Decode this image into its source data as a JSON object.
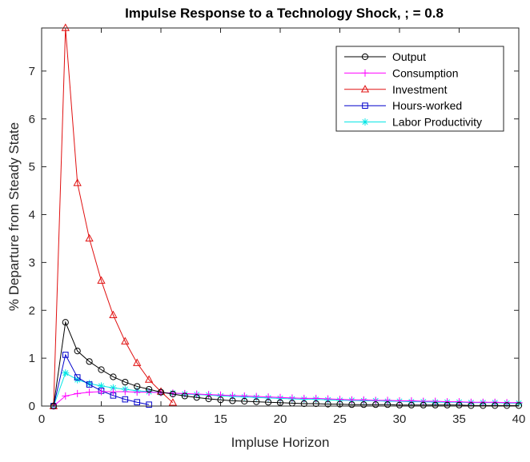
{
  "chart_data": {
    "type": "line",
    "title": "Impulse Response to a Technology Shock, ; = 0.8",
    "xlabel": "Impluse Horizon",
    "ylabel": "% Departure from Steady State",
    "xlim": [
      0,
      40
    ],
    "ylim": [
      0,
      7.9
    ],
    "xticks": [
      0,
      5,
      10,
      15,
      20,
      25,
      30,
      35,
      40
    ],
    "yticks": [
      0,
      1,
      2,
      3,
      4,
      5,
      6,
      7
    ],
    "grid": false,
    "legend_position": "top-right",
    "series": [
      {
        "name": "Output",
        "color": "#000000",
        "marker": "circle",
        "x": [
          1,
          2,
          3,
          4,
          5,
          6,
          7,
          8,
          9,
          10,
          11,
          12,
          13,
          14,
          15,
          16,
          17,
          18,
          19,
          20,
          21,
          22,
          23,
          24,
          25,
          26,
          27,
          28,
          29,
          30,
          31,
          32,
          33,
          34,
          35,
          36,
          37,
          38,
          39,
          40
        ],
        "values": [
          0,
          1.75,
          1.15,
          0.93,
          0.76,
          0.61,
          0.5,
          0.41,
          0.35,
          0.29,
          0.25,
          0.21,
          0.18,
          0.15,
          0.13,
          0.11,
          0.1,
          0.09,
          0.08,
          0.07,
          0.06,
          0.05,
          0.05,
          0.04,
          0.04,
          0.03,
          0.03,
          0.03,
          0.03,
          0.02,
          0.02,
          0.02,
          0.02,
          0.02,
          0.02,
          0.01,
          0.01,
          0.01,
          0.01,
          0.01
        ]
      },
      {
        "name": "Consumption",
        "color": "#ff00ff",
        "marker": "plus",
        "x": [
          1,
          2,
          3,
          4,
          5,
          6,
          7,
          8,
          9,
          10,
          11,
          12,
          13,
          14,
          15,
          16,
          17,
          18,
          19,
          20,
          21,
          22,
          23,
          24,
          25,
          26,
          27,
          28,
          29,
          30,
          31,
          32,
          33,
          34,
          35,
          36,
          37,
          38,
          39,
          40
        ],
        "values": [
          0,
          0.21,
          0.26,
          0.29,
          0.3,
          0.3,
          0.3,
          0.29,
          0.29,
          0.28,
          0.27,
          0.26,
          0.25,
          0.24,
          0.23,
          0.22,
          0.21,
          0.2,
          0.19,
          0.18,
          0.17,
          0.16,
          0.16,
          0.15,
          0.14,
          0.13,
          0.13,
          0.12,
          0.12,
          0.11,
          0.11,
          0.1,
          0.1,
          0.09,
          0.09,
          0.08,
          0.08,
          0.08,
          0.07,
          0.07
        ]
      },
      {
        "name": "Investment",
        "color": "#e01010",
        "marker": "triangle",
        "x": [
          1,
          2,
          3,
          4,
          5,
          6,
          7,
          8,
          9,
          10,
          11
        ],
        "values": [
          0,
          7.9,
          4.66,
          3.5,
          2.62,
          1.9,
          1.35,
          0.9,
          0.55,
          0.3,
          0.07
        ]
      },
      {
        "name": "Hours-worked",
        "color": "#0000cc",
        "marker": "square",
        "x": [
          1,
          2,
          3,
          4,
          5,
          6,
          7,
          8,
          9
        ],
        "values": [
          0,
          1.07,
          0.6,
          0.45,
          0.32,
          0.22,
          0.14,
          0.08,
          0.03
        ]
      },
      {
        "name": "Labor Productivity",
        "color": "#00e5e5",
        "marker": "asterisk",
        "x": [
          1,
          2,
          3,
          4,
          5,
          6,
          7,
          8,
          9,
          10,
          11,
          12,
          13,
          14,
          15,
          16,
          17,
          18,
          19,
          20,
          21,
          22,
          23,
          24,
          25,
          26,
          27,
          28,
          29,
          30,
          31,
          32,
          33,
          34,
          35,
          36,
          37,
          38,
          39,
          40
        ],
        "values": [
          0,
          0.69,
          0.55,
          0.47,
          0.42,
          0.38,
          0.35,
          0.32,
          0.3,
          0.28,
          0.27,
          0.25,
          0.24,
          0.23,
          0.21,
          0.2,
          0.19,
          0.18,
          0.17,
          0.16,
          0.15,
          0.14,
          0.14,
          0.13,
          0.12,
          0.12,
          0.11,
          0.11,
          0.1,
          0.1,
          0.09,
          0.09,
          0.08,
          0.08,
          0.08,
          0.07,
          0.07,
          0.07,
          0.06,
          0.06
        ]
      }
    ]
  }
}
